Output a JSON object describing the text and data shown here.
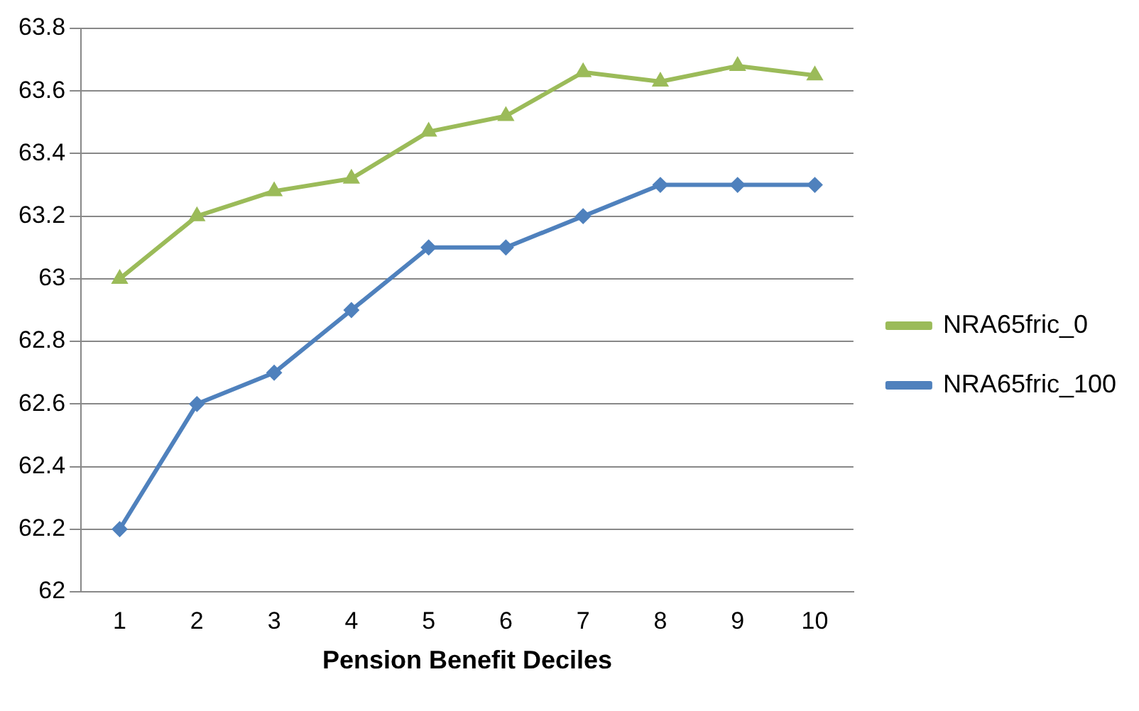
{
  "chart_data": {
    "type": "line",
    "xlabel": "Pension Benefit Deciles",
    "categories": [
      "1",
      "2",
      "3",
      "4",
      "5",
      "6",
      "7",
      "8",
      "9",
      "10"
    ],
    "series": [
      {
        "name": "NRA65fric_0",
        "color": "#9bbb59",
        "marker": "triangle",
        "values": [
          63.0,
          63.2,
          63.28,
          63.32,
          63.47,
          63.52,
          63.66,
          63.63,
          63.68,
          63.65
        ]
      },
      {
        "name": "NRA65fric_100",
        "color": "#4f81bd",
        "marker": "diamond",
        "values": [
          62.2,
          62.6,
          62.7,
          62.9,
          63.1,
          63.1,
          63.2,
          63.3,
          63.3,
          63.3
        ]
      }
    ],
    "ylim": [
      62,
      63.8
    ],
    "yticks": [
      62,
      62.2,
      62.4,
      62.6,
      62.8,
      63,
      63.2,
      63.4,
      63.6,
      63.8
    ],
    "grid": "y",
    "legend": "right"
  }
}
